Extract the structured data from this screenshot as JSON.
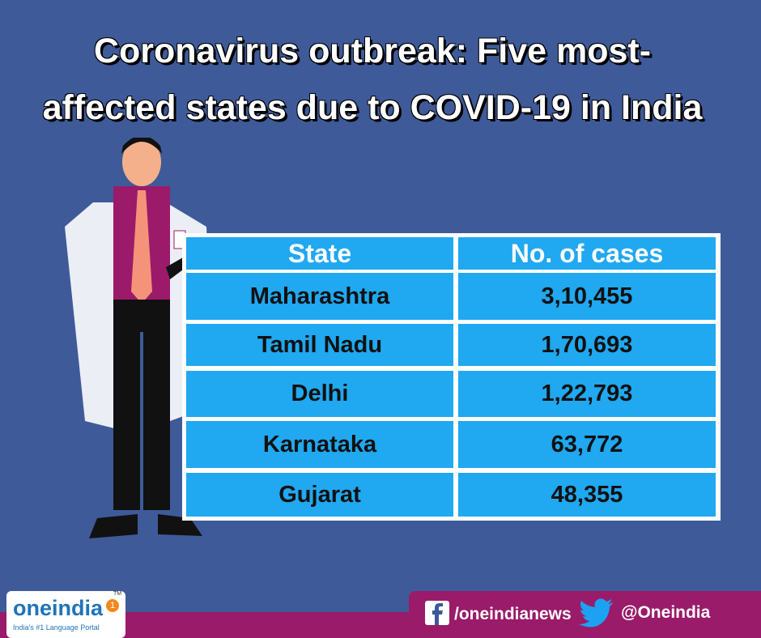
{
  "header": {
    "title": "Coronavirus outbreak: Five most-affected states due to COVID-19 in India"
  },
  "table": {
    "columns": [
      "State",
      "No. of cases"
    ],
    "rows": [
      [
        "Maharashtra",
        "3,10,455"
      ],
      [
        "Tamil Nadu",
        "1,70,693"
      ],
      [
        "Delhi",
        "1,22,793"
      ],
      [
        "Karnataka",
        "63,772"
      ],
      [
        "Gujarat",
        "48,355"
      ]
    ]
  },
  "footer": {
    "logo": "oneindia",
    "logo_badge": "1",
    "trademark": "TM",
    "tagline": "India's #1 Language Portal",
    "facebook": "/oneindianews",
    "twitter": "@Oneindia"
  }
}
